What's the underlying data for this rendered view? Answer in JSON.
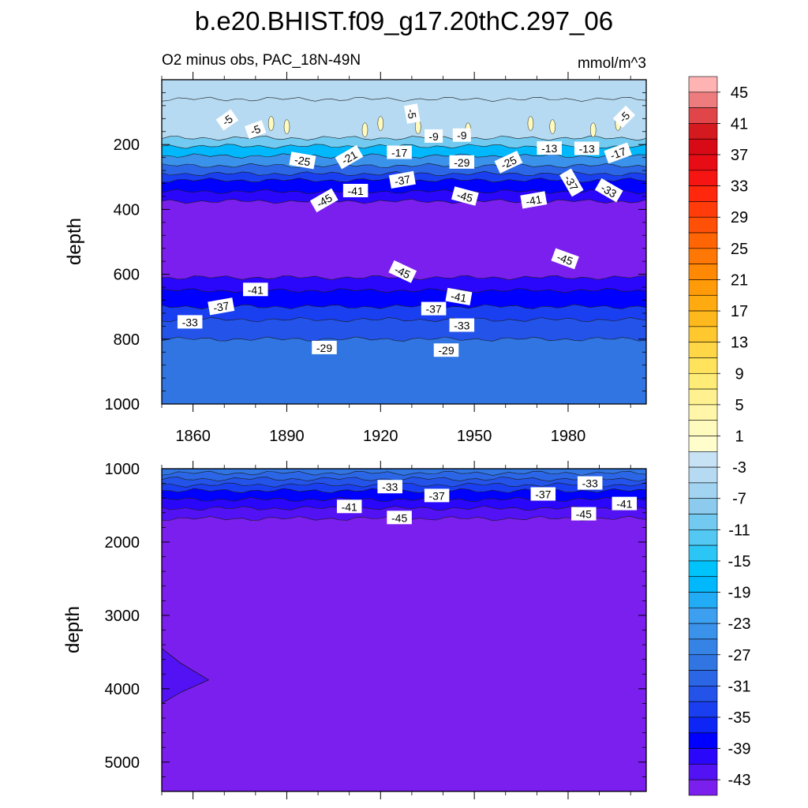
{
  "figure": {
    "title": "b.e20.BHIST.f09_g17.20thC.297_06",
    "subtitle": "O2 minus obs, PAC_18N-49N",
    "units": "mmol/m^3"
  },
  "chart_data": [
    {
      "type": "heatmap",
      "panel": "upper",
      "title": "b.e20.BHIST.f09_g17.20thC.297_06",
      "left_string": "O2 minus obs, PAC_18N-49N",
      "right_string": "mmol/m^3",
      "ylabel": "depth",
      "xlim": [
        1850,
        2005
      ],
      "ylim": [
        1000,
        0
      ],
      "x_ticks": [
        1860,
        1890,
        1920,
        1950,
        1980
      ],
      "x_tick_labels": [
        "1860",
        "1890",
        "1920",
        "1950",
        "1980"
      ],
      "y_ticks": [
        200,
        400,
        600,
        800,
        1000
      ],
      "y_tick_labels": [
        "200",
        "400",
        "600",
        "800",
        "1000"
      ],
      "contour_interval": 2,
      "color_bands": [
        {
          "from": 0,
          "to": 60,
          "value": -5
        },
        {
          "from": 60,
          "to": 180,
          "value": -5
        },
        {
          "from": 180,
          "to": 205,
          "value": -11
        },
        {
          "from": 205,
          "to": 235,
          "value": -19
        },
        {
          "from": 235,
          "to": 265,
          "value": -25
        },
        {
          "from": 265,
          "to": 290,
          "value": -31
        },
        {
          "from": 290,
          "to": 310,
          "value": -35
        },
        {
          "from": 310,
          "to": 345,
          "value": -39
        },
        {
          "from": 345,
          "to": 375,
          "value": -41
        },
        {
          "from": 375,
          "to": 610,
          "value": -45
        },
        {
          "from": 610,
          "to": 650,
          "value": -41
        },
        {
          "from": 650,
          "to": 700,
          "value": -39
        },
        {
          "from": 700,
          "to": 740,
          "value": -35
        },
        {
          "from": 740,
          "to": 800,
          "value": -33
        },
        {
          "from": 800,
          "to": 1000,
          "value": -29
        }
      ],
      "contour_labels": [
        {
          "text": "-5",
          "x": 1871,
          "y": 125,
          "angle": -35
        },
        {
          "text": "-5",
          "x": 1880,
          "y": 155,
          "angle": -20
        },
        {
          "text": "-5",
          "x": 1930,
          "y": 105,
          "angle": 80
        },
        {
          "text": "-5",
          "x": 1998,
          "y": 115,
          "angle": -45
        },
        {
          "text": "-9",
          "x": 1937,
          "y": 175,
          "angle": 0
        },
        {
          "text": "-9",
          "x": 1946,
          "y": 172,
          "angle": 0
        },
        {
          "text": "-13",
          "x": 1974,
          "y": 212,
          "angle": 0
        },
        {
          "text": "-13",
          "x": 1986,
          "y": 213,
          "angle": 0
        },
        {
          "text": "-17",
          "x": 1926,
          "y": 225,
          "angle": 0
        },
        {
          "text": "-17",
          "x": 1996,
          "y": 227,
          "angle": -20
        },
        {
          "text": "-21",
          "x": 1910,
          "y": 240,
          "angle": -30
        },
        {
          "text": "-25",
          "x": 1895,
          "y": 250,
          "angle": 10
        },
        {
          "text": "-25",
          "x": 1961,
          "y": 255,
          "angle": -25
        },
        {
          "text": "-29",
          "x": 1946,
          "y": 255,
          "angle": 0
        },
        {
          "text": "-37",
          "x": 1927,
          "y": 310,
          "angle": -10
        },
        {
          "text": "-37",
          "x": 1981,
          "y": 318,
          "angle": 60
        },
        {
          "text": "-41",
          "x": 1912,
          "y": 343,
          "angle": 0
        },
        {
          "text": "-41",
          "x": 1969,
          "y": 372,
          "angle": -10
        },
        {
          "text": "-33",
          "x": 1993,
          "y": 342,
          "angle": 30
        },
        {
          "text": "-45",
          "x": 1902,
          "y": 373,
          "angle": -30
        },
        {
          "text": "-45",
          "x": 1947,
          "y": 360,
          "angle": 15
        },
        {
          "text": "-45",
          "x": 1927,
          "y": 593,
          "angle": 25
        },
        {
          "text": "-45",
          "x": 1979,
          "y": 553,
          "angle": 20
        },
        {
          "text": "-41",
          "x": 1880,
          "y": 648,
          "angle": 0
        },
        {
          "text": "-41",
          "x": 1945,
          "y": 670,
          "angle": 10
        },
        {
          "text": "-37",
          "x": 1869,
          "y": 700,
          "angle": -10
        },
        {
          "text": "-37",
          "x": 1937,
          "y": 707,
          "angle": 0
        },
        {
          "text": "-33",
          "x": 1859,
          "y": 748,
          "angle": 0
        },
        {
          "text": "-33",
          "x": 1946,
          "y": 758,
          "angle": 0
        },
        {
          "text": "-29",
          "x": 1902,
          "y": 827,
          "angle": 0
        },
        {
          "text": "-29",
          "x": 1941,
          "y": 835,
          "angle": 0
        }
      ]
    },
    {
      "type": "heatmap",
      "panel": "lower",
      "ylabel": "depth",
      "xlim": [
        1850,
        2005
      ],
      "ylim": [
        5400,
        1000
      ],
      "y_ticks": [
        1000,
        2000,
        3000,
        4000,
        5000
      ],
      "y_tick_labels": [
        "1000",
        "2000",
        "3000",
        "4000",
        "5000"
      ],
      "contour_interval": 2,
      "color_bands": [
        {
          "from": 1000,
          "to": 1060,
          "value": -29
        },
        {
          "from": 1060,
          "to": 1140,
          "value": -31
        },
        {
          "from": 1140,
          "to": 1220,
          "value": -33
        },
        {
          "from": 1220,
          "to": 1300,
          "value": -35
        },
        {
          "from": 1300,
          "to": 1420,
          "value": -39
        },
        {
          "from": 1420,
          "to": 1540,
          "value": -41
        },
        {
          "from": 1540,
          "to": 1680,
          "value": -43
        },
        {
          "from": 1680,
          "to": 5400,
          "value": -45
        }
      ],
      "patches": [
        {
          "value": -43,
          "points": [
            [
              1850,
              3450
            ],
            [
              1856,
              3650
            ],
            [
              1865,
              3880
            ],
            [
              1856,
              4050
            ],
            [
              1850,
              4200
            ]
          ]
        }
      ],
      "contour_labels": [
        {
          "text": "-33",
          "x": 1923,
          "y": 1250,
          "angle": 0
        },
        {
          "text": "-37",
          "x": 1938,
          "y": 1370,
          "angle": 0
        },
        {
          "text": "-37",
          "x": 1972,
          "y": 1350,
          "angle": 0
        },
        {
          "text": "-33",
          "x": 1987,
          "y": 1200,
          "angle": 0
        },
        {
          "text": "-41",
          "x": 1910,
          "y": 1520,
          "angle": 0
        },
        {
          "text": "-45",
          "x": 1926,
          "y": 1670,
          "angle": 0
        },
        {
          "text": "-45",
          "x": 1985,
          "y": 1620,
          "angle": 0
        },
        {
          "text": "-41",
          "x": 1998,
          "y": 1480,
          "angle": 0
        }
      ]
    }
  ],
  "colorbar": {
    "levels": [
      -45,
      -43,
      -41,
      -39,
      -37,
      -35,
      -33,
      -31,
      -29,
      -27,
      -25,
      -23,
      -21,
      -19,
      -17,
      -15,
      -13,
      -11,
      -9,
      -7,
      -5,
      -3,
      -1,
      1,
      3,
      5,
      7,
      9,
      11,
      13,
      15,
      17,
      19,
      21,
      23,
      25,
      27,
      29,
      31,
      33,
      35,
      37,
      39,
      41,
      43,
      45
    ],
    "labels": [
      "45",
      "41",
      "37",
      "33",
      "29",
      "25",
      "21",
      "17",
      "13",
      "9",
      "5",
      "1",
      "-3",
      "-7",
      "-11",
      "-15",
      "-19",
      "-23",
      "-27",
      "-31",
      "-35",
      "-39",
      "-43"
    ],
    "colors": [
      "#7b1fee",
      "#5212f4",
      "#2a06fb",
      "#0000ff",
      "#0d26f5",
      "#1a3ff0",
      "#2353e9",
      "#2a66e5",
      "#3075e2",
      "#3683e6",
      "#3a92ea",
      "#3c9ff0",
      "#22acf5",
      "#00b8fb",
      "#00c3fb",
      "#2cc6f6",
      "#52c8f2",
      "#72caf0",
      "#8ccbee",
      "#a2d3f0",
      "#b5daf2",
      "#c6e2f4",
      "#fffdcc",
      "#fffabd",
      "#fff6a9",
      "#fff190",
      "#ffec77",
      "#ffe35c",
      "#ffd645",
      "#ffc82f",
      "#ffb91c",
      "#ffaa10",
      "#ff9a08",
      "#ff8905",
      "#ff7704",
      "#ff6405",
      "#ff5008",
      "#ff3c0a",
      "#ff280d",
      "#f61512",
      "#e80d14",
      "#d80a15",
      "#d41a1f",
      "#e0454a",
      "#ee7b7e",
      "#ffb3b3"
    ]
  }
}
